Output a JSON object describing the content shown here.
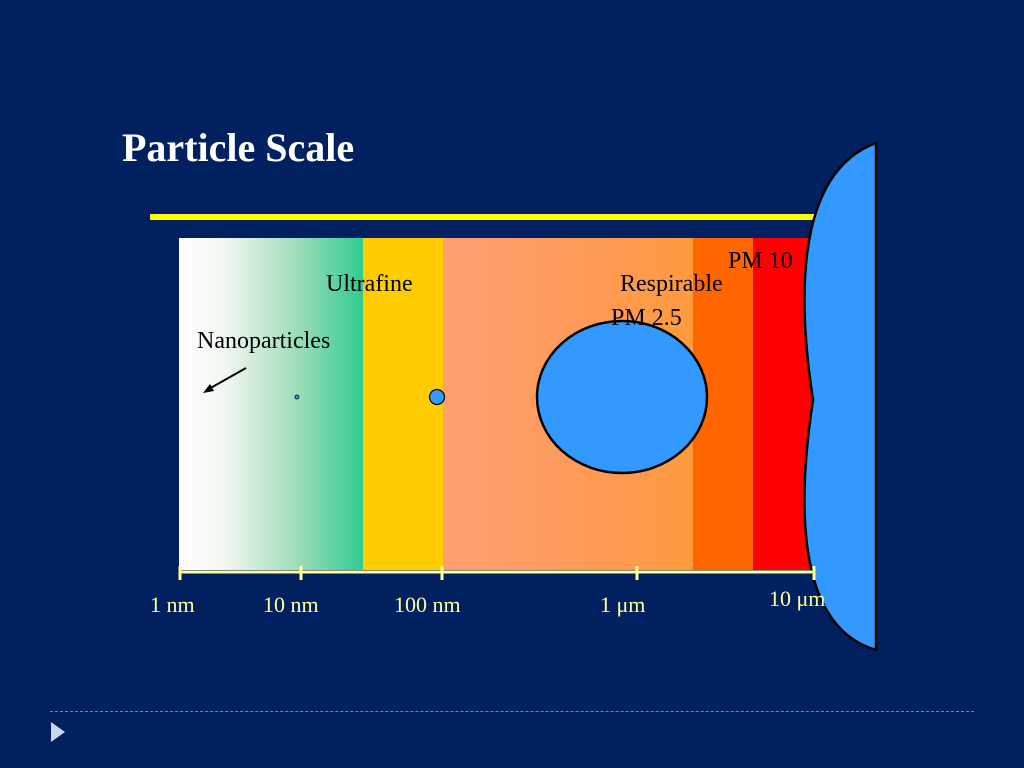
{
  "slide": {
    "title": "Particle Scale",
    "regions": {
      "ultrafine": "Ultrafine",
      "nanoparticles": "Nanoparticles",
      "respirable": "Respirable",
      "pm25": "PM 2.5",
      "pm10": "PM 10"
    },
    "axis_ticks": [
      "1 nm",
      "10 nm",
      "100 nm",
      "1 μm",
      "10 μm"
    ],
    "colors": {
      "background": "#002060",
      "title_rule": "#ffff00",
      "axis": "#ffff99",
      "ultrafine_band": "#ffcc00",
      "respirable_band": "#ff9a56",
      "pm25_band": "#ff6600",
      "pm10_band": "#ff0000",
      "particle": "#3399ff"
    }
  }
}
